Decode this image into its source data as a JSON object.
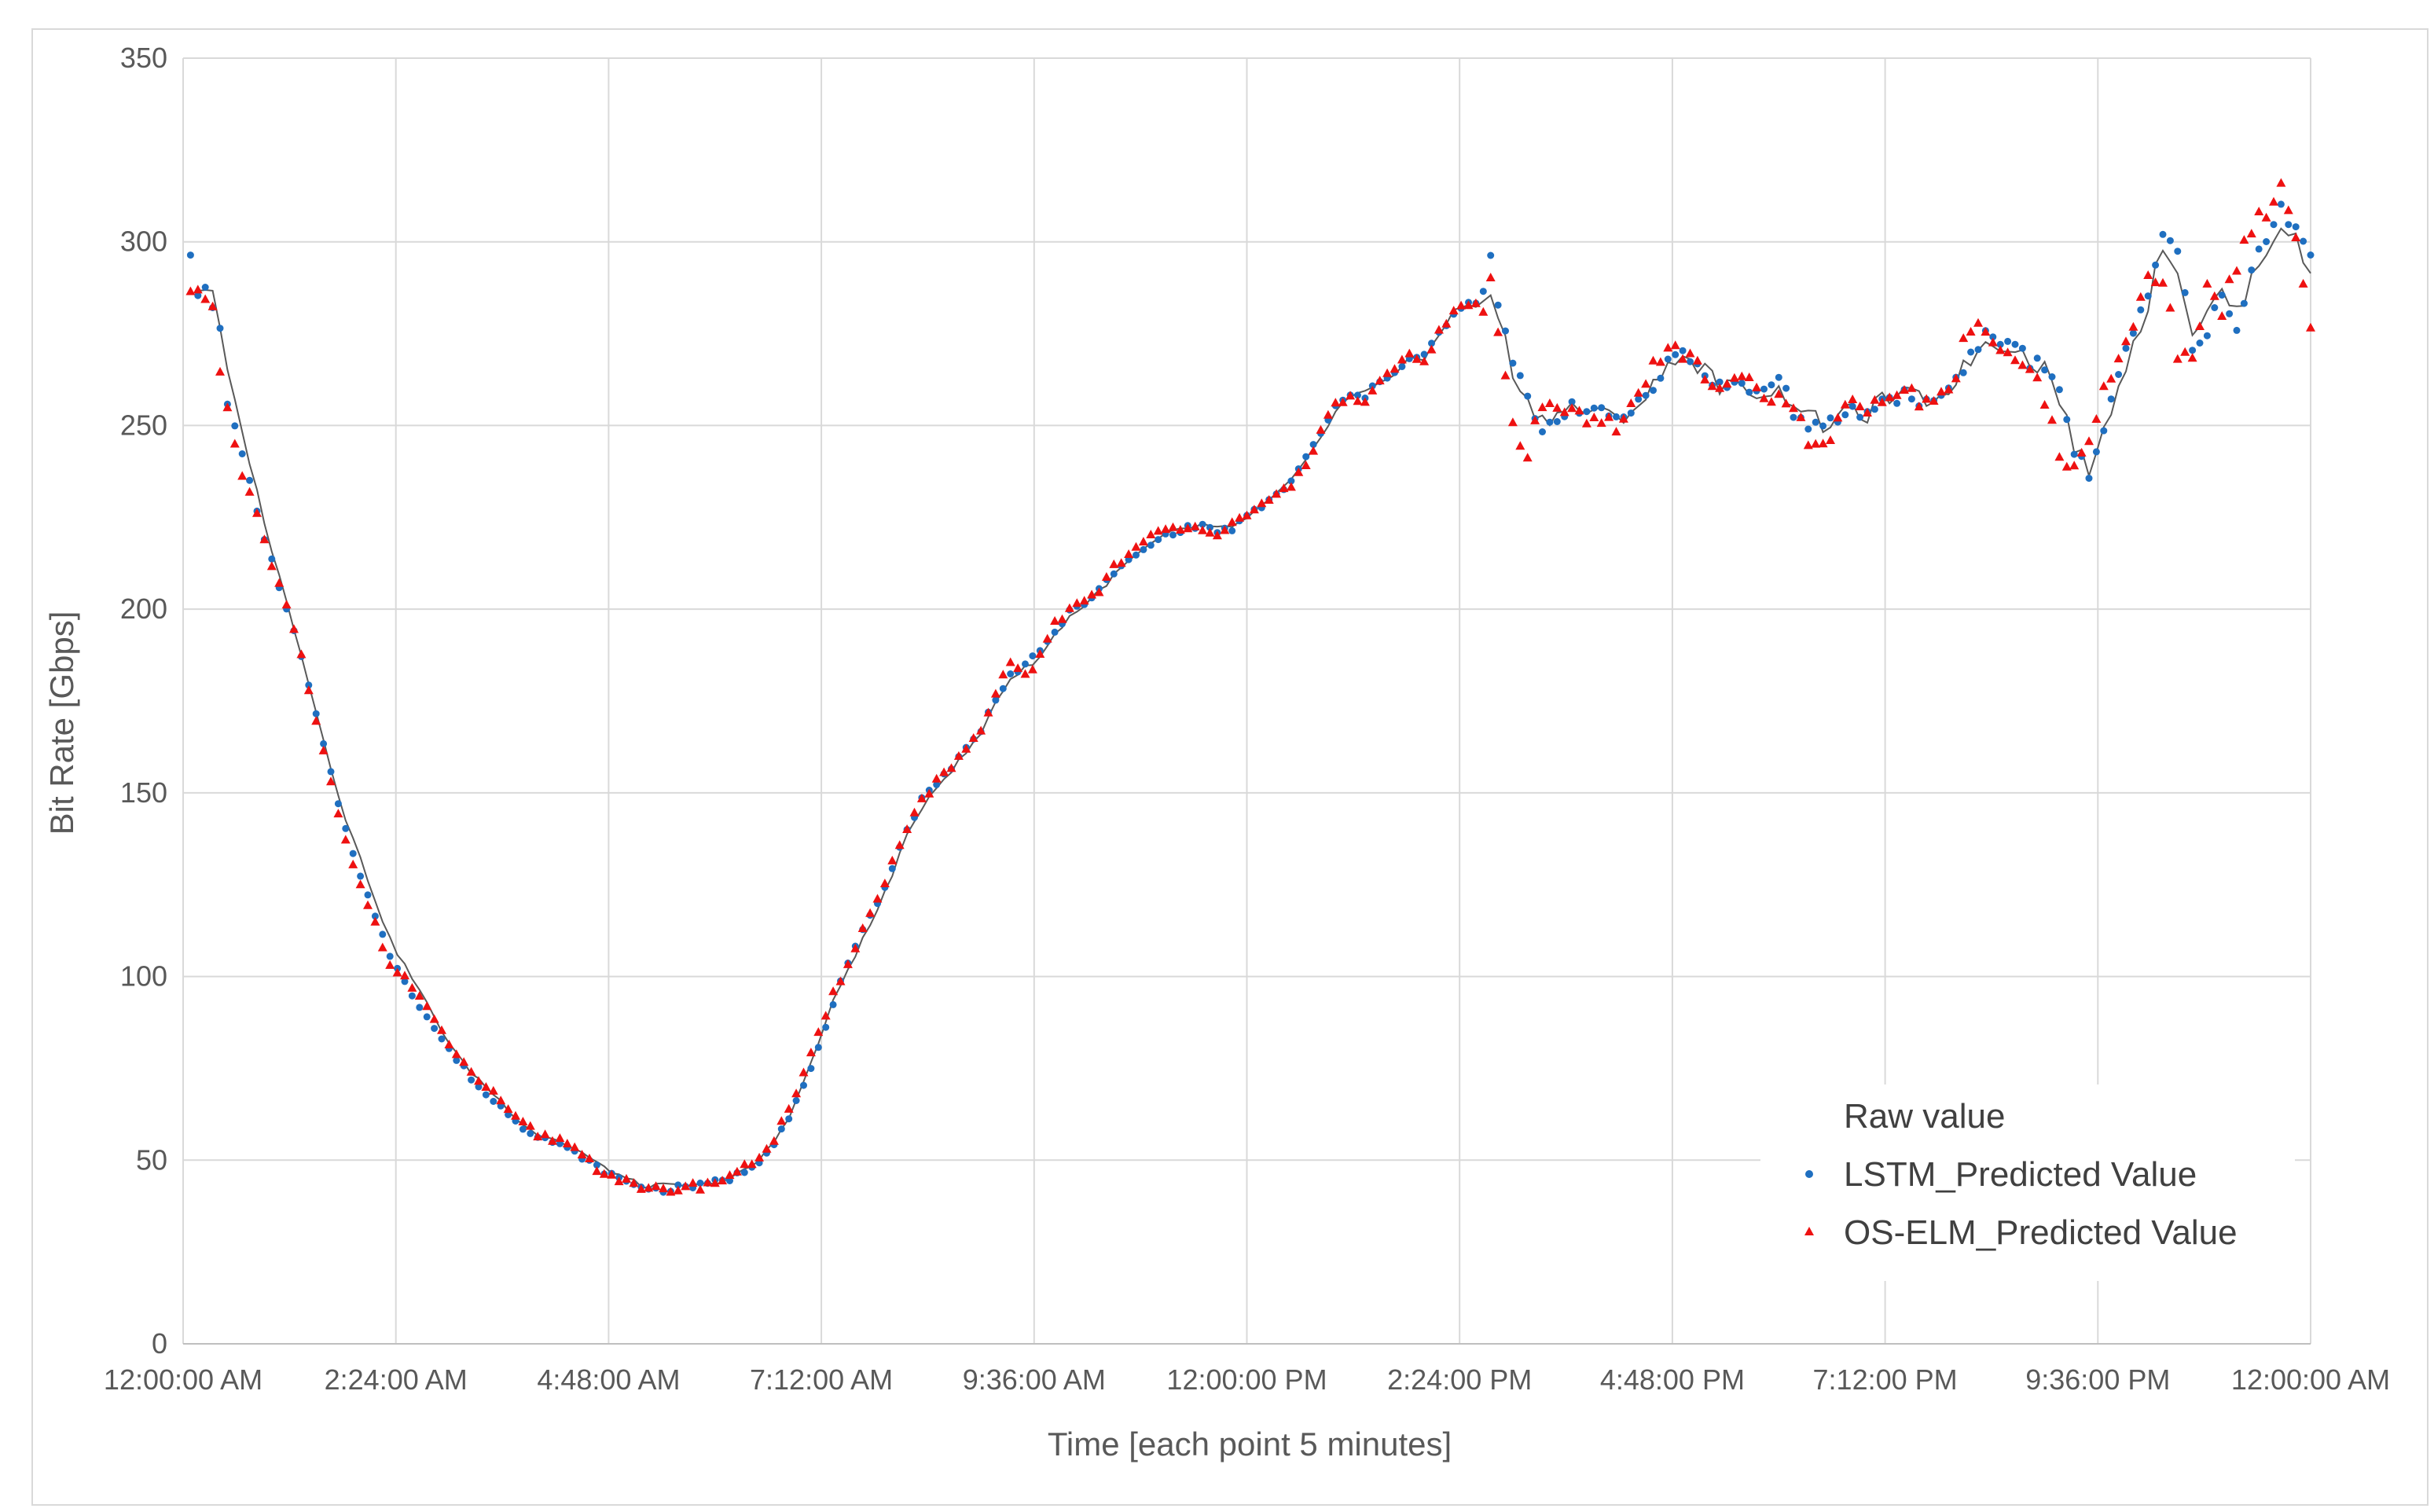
{
  "chart_data": {
    "type": "scatter",
    "title": "",
    "xlabel": "Time [each point 5 minutes]",
    "ylabel": "Bit Rate [Gbps]",
    "xlim": [
      0,
      288
    ],
    "ylim": [
      0,
      350
    ],
    "grid": true,
    "legend_position": "bottom-right",
    "x_ticks": [
      {
        "pos": 0,
        "label": "12:00:00 AM"
      },
      {
        "pos": 28.8,
        "label": "2:24:00 AM"
      },
      {
        "pos": 57.6,
        "label": "4:48:00 AM"
      },
      {
        "pos": 86.4,
        "label": "7:12:00 AM"
      },
      {
        "pos": 115.2,
        "label": "9:36:00 AM"
      },
      {
        "pos": 144,
        "label": "12:00:00 PM"
      },
      {
        "pos": 172.8,
        "label": "2:24:00 PM"
      },
      {
        "pos": 201.6,
        "label": "4:48:00 PM"
      },
      {
        "pos": 230.4,
        "label": "7:12:00 PM"
      },
      {
        "pos": 259.2,
        "label": "9:36:00 PM"
      },
      {
        "pos": 288,
        "label": "12:00:00 AM"
      }
    ],
    "y_ticks": [
      "0",
      "50",
      "100",
      "150",
      "200",
      "250",
      "300",
      "350"
    ],
    "series": [
      {
        "name": "Raw value",
        "style": "line",
        "color": "#595959"
      },
      {
        "name": "LSTM_Predicted Value",
        "style": "dot",
        "color": "#1f6fc0"
      },
      {
        "name": "OS-ELM_Predicted Value",
        "style": "triangle",
        "color": "#ee1111"
      }
    ],
    "raw_anchors": [
      [
        2,
        287
      ],
      [
        4,
        287
      ],
      [
        6,
        265
      ],
      [
        8,
        248
      ],
      [
        10,
        232
      ],
      [
        12,
        216
      ],
      [
        14,
        202
      ],
      [
        16,
        188
      ],
      [
        18,
        172
      ],
      [
        20,
        157
      ],
      [
        22,
        143
      ],
      [
        24,
        132
      ],
      [
        26,
        121
      ],
      [
        28,
        110
      ],
      [
        30,
        103
      ],
      [
        32,
        96
      ],
      [
        34,
        89
      ],
      [
        36,
        82
      ],
      [
        38,
        76
      ],
      [
        40,
        72
      ],
      [
        42,
        68
      ],
      [
        44,
        64
      ],
      [
        46,
        60
      ],
      [
        48,
        57
      ],
      [
        50,
        56
      ],
      [
        52,
        54
      ],
      [
        54,
        52
      ],
      [
        56,
        49
      ],
      [
        58,
        47
      ],
      [
        60,
        45
      ],
      [
        62,
        43
      ],
      [
        64,
        43
      ],
      [
        66,
        43
      ],
      [
        68,
        43
      ],
      [
        70,
        43
      ],
      [
        72,
        44
      ],
      [
        74,
        45
      ],
      [
        76,
        47
      ],
      [
        78,
        50
      ],
      [
        80,
        55
      ],
      [
        82,
        62
      ],
      [
        84,
        71
      ],
      [
        86,
        82
      ],
      [
        88,
        93
      ],
      [
        90,
        102
      ],
      [
        92,
        110
      ],
      [
        94,
        118
      ],
      [
        96,
        128
      ],
      [
        98,
        138
      ],
      [
        100,
        146
      ],
      [
        102,
        152
      ],
      [
        104,
        156
      ],
      [
        106,
        161
      ],
      [
        108,
        166
      ],
      [
        110,
        175
      ],
      [
        112,
        181
      ],
      [
        114,
        184
      ],
      [
        116,
        187
      ],
      [
        118,
        193
      ],
      [
        120,
        198
      ],
      [
        122,
        201
      ],
      [
        124,
        205
      ],
      [
        126,
        209
      ],
      [
        128,
        213
      ],
      [
        130,
        216
      ],
      [
        132,
        219
      ],
      [
        134,
        221
      ],
      [
        136,
        222
      ],
      [
        138,
        223
      ],
      [
        140,
        222
      ],
      [
        142,
        222
      ],
      [
        144,
        225
      ],
      [
        146,
        228
      ],
      [
        148,
        231
      ],
      [
        150,
        235
      ],
      [
        152,
        240
      ],
      [
        154,
        247
      ],
      [
        156,
        254
      ],
      [
        158,
        258
      ],
      [
        160,
        259
      ],
      [
        162,
        262
      ],
      [
        164,
        264
      ],
      [
        166,
        268
      ],
      [
        168,
        268
      ],
      [
        170,
        275
      ],
      [
        172,
        281
      ],
      [
        174,
        283
      ],
      [
        176,
        282
      ],
      [
        177,
        286
      ],
      [
        178,
        280
      ],
      [
        180,
        265
      ],
      [
        182,
        256
      ],
      [
        184,
        252
      ],
      [
        186,
        253
      ],
      [
        188,
        255
      ],
      [
        190,
        254
      ],
      [
        192,
        253
      ],
      [
        194,
        252
      ],
      [
        196,
        254
      ],
      [
        198,
        258
      ],
      [
        200,
        263
      ],
      [
        202,
        269
      ],
      [
        204,
        268
      ],
      [
        206,
        265
      ],
      [
        208,
        261
      ],
      [
        210,
        260
      ],
      [
        212,
        260
      ],
      [
        214,
        259
      ],
      [
        216,
        259
      ],
      [
        218,
        257
      ],
      [
        220,
        253
      ],
      [
        222,
        250
      ],
      [
        224,
        252
      ],
      [
        226,
        254
      ],
      [
        228,
        253
      ],
      [
        230,
        257
      ],
      [
        232,
        258
      ],
      [
        234,
        258
      ],
      [
        236,
        257
      ],
      [
        238,
        258
      ],
      [
        240,
        263
      ],
      [
        242,
        268
      ],
      [
        244,
        273
      ],
      [
        246,
        272
      ],
      [
        248,
        272
      ],
      [
        250,
        267
      ],
      [
        252,
        266
      ],
      [
        254,
        258
      ],
      [
        256,
        244
      ],
      [
        258,
        238
      ],
      [
        260,
        248
      ],
      [
        262,
        262
      ],
      [
        264,
        272
      ],
      [
        266,
        283
      ],
      [
        268,
        300
      ],
      [
        270,
        292
      ],
      [
        272,
        276
      ],
      [
        274,
        280
      ],
      [
        276,
        287
      ],
      [
        278,
        280
      ],
      [
        280,
        290
      ],
      [
        282,
        298
      ],
      [
        284,
        305
      ],
      [
        286,
        300
      ],
      [
        288,
        291
      ]
    ],
    "lstm_anchors": [
      [
        1,
        297
      ],
      [
        2,
        286
      ],
      [
        3,
        287
      ],
      [
        4,
        282
      ],
      [
        5,
        276
      ],
      [
        6,
        256
      ],
      [
        8,
        243
      ],
      [
        10,
        226
      ],
      [
        12,
        213
      ],
      [
        14,
        200
      ],
      [
        16,
        187
      ],
      [
        18,
        171
      ],
      [
        20,
        155
      ],
      [
        22,
        140
      ],
      [
        24,
        128
      ],
      [
        26,
        116
      ],
      [
        28,
        106
      ],
      [
        30,
        99
      ],
      [
        32,
        92
      ],
      [
        34,
        86
      ],
      [
        36,
        80
      ],
      [
        38,
        75
      ],
      [
        40,
        70
      ],
      [
        42,
        66
      ],
      [
        44,
        63
      ],
      [
        46,
        59
      ],
      [
        48,
        57
      ],
      [
        50,
        55
      ],
      [
        52,
        53
      ],
      [
        54,
        51
      ],
      [
        56,
        48
      ],
      [
        58,
        46
      ],
      [
        60,
        44
      ],
      [
        62,
        43
      ],
      [
        64,
        42
      ],
      [
        66,
        42
      ],
      [
        68,
        43
      ],
      [
        70,
        43
      ],
      [
        72,
        44
      ],
      [
        74,
        45
      ],
      [
        76,
        47
      ],
      [
        78,
        50
      ],
      [
        80,
        55
      ],
      [
        82,
        62
      ],
      [
        84,
        70
      ],
      [
        86,
        80
      ],
      [
        88,
        93
      ],
      [
        90,
        103
      ],
      [
        92,
        112
      ],
      [
        94,
        120
      ],
      [
        96,
        130
      ],
      [
        98,
        140
      ],
      [
        100,
        148
      ],
      [
        102,
        153
      ],
      [
        104,
        157
      ],
      [
        106,
        162
      ],
      [
        108,
        167
      ],
      [
        110,
        176
      ],
      [
        112,
        182
      ],
      [
        114,
        185
      ],
      [
        116,
        188
      ],
      [
        118,
        194
      ],
      [
        120,
        199
      ],
      [
        122,
        202
      ],
      [
        124,
        205
      ],
      [
        126,
        210
      ],
      [
        128,
        213
      ],
      [
        130,
        216
      ],
      [
        132,
        219
      ],
      [
        134,
        221
      ],
      [
        136,
        222
      ],
      [
        138,
        223
      ],
      [
        140,
        221
      ],
      [
        142,
        222
      ],
      [
        144,
        225
      ],
      [
        146,
        228
      ],
      [
        148,
        231
      ],
      [
        150,
        235
      ],
      [
        152,
        241
      ],
      [
        154,
        248
      ],
      [
        156,
        255
      ],
      [
        158,
        258
      ],
      [
        160,
        258
      ],
      [
        162,
        262
      ],
      [
        164,
        265
      ],
      [
        166,
        268
      ],
      [
        168,
        269
      ],
      [
        170,
        275
      ],
      [
        172,
        280
      ],
      [
        174,
        283
      ],
      [
        176,
        285
      ],
      [
        177,
        295
      ],
      [
        178,
        283
      ],
      [
        180,
        267
      ],
      [
        182,
        257
      ],
      [
        184,
        249
      ],
      [
        186,
        252
      ],
      [
        188,
        256
      ],
      [
        190,
        254
      ],
      [
        192,
        253
      ],
      [
        194,
        252
      ],
      [
        196,
        254
      ],
      [
        198,
        259
      ],
      [
        200,
        264
      ],
      [
        202,
        270
      ],
      [
        204,
        268
      ],
      [
        206,
        264
      ],
      [
        208,
        261
      ],
      [
        210,
        261
      ],
      [
        212,
        260
      ],
      [
        214,
        259
      ],
      [
        216,
        264
      ],
      [
        218,
        254
      ],
      [
        220,
        249
      ],
      [
        222,
        249
      ],
      [
        224,
        252
      ],
      [
        226,
        254
      ],
      [
        228,
        253
      ],
      [
        230,
        257
      ],
      [
        232,
        258
      ],
      [
        234,
        258
      ],
      [
        236,
        256
      ],
      [
        238,
        258
      ],
      [
        240,
        263
      ],
      [
        242,
        269
      ],
      [
        244,
        275
      ],
      [
        246,
        272
      ],
      [
        248,
        273
      ],
      [
        250,
        267
      ],
      [
        252,
        266
      ],
      [
        254,
        258
      ],
      [
        256,
        244
      ],
      [
        258,
        236
      ],
      [
        260,
        250
      ],
      [
        262,
        265
      ],
      [
        264,
        274
      ],
      [
        266,
        285
      ],
      [
        268,
        302
      ],
      [
        270,
        297
      ],
      [
        272,
        272
      ],
      [
        274,
        276
      ],
      [
        276,
        285
      ],
      [
        278,
        275
      ],
      [
        280,
        292
      ],
      [
        282,
        302
      ],
      [
        284,
        310
      ],
      [
        286,
        303
      ],
      [
        288,
        298
      ]
    ],
    "oselm_anchors": [
      [
        1,
        286
      ],
      [
        2,
        288
      ],
      [
        3,
        285
      ],
      [
        4,
        282
      ],
      [
        5,
        264
      ],
      [
        6,
        254
      ],
      [
        8,
        236
      ],
      [
        10,
        226
      ],
      [
        12,
        212
      ],
      [
        14,
        201
      ],
      [
        16,
        187
      ],
      [
        18,
        169
      ],
      [
        20,
        153
      ],
      [
        22,
        137
      ],
      [
        24,
        126
      ],
      [
        26,
        114
      ],
      [
        28,
        103
      ],
      [
        30,
        100
      ],
      [
        32,
        94
      ],
      [
        34,
        88
      ],
      [
        36,
        82
      ],
      [
        38,
        76
      ],
      [
        40,
        72
      ],
      [
        42,
        68
      ],
      [
        44,
        63
      ],
      [
        46,
        60
      ],
      [
        48,
        57
      ],
      [
        50,
        56
      ],
      [
        52,
        55
      ],
      [
        54,
        52
      ],
      [
        56,
        48
      ],
      [
        58,
        46
      ],
      [
        60,
        44
      ],
      [
        62,
        42
      ],
      [
        64,
        42
      ],
      [
        66,
        42
      ],
      [
        68,
        43
      ],
      [
        70,
        43
      ],
      [
        72,
        44
      ],
      [
        74,
        46
      ],
      [
        76,
        48
      ],
      [
        78,
        51
      ],
      [
        80,
        56
      ],
      [
        82,
        64
      ],
      [
        84,
        73
      ],
      [
        86,
        84
      ],
      [
        88,
        95
      ],
      [
        90,
        104
      ],
      [
        92,
        113
      ],
      [
        94,
        121
      ],
      [
        96,
        131
      ],
      [
        98,
        141
      ],
      [
        100,
        148
      ],
      [
        102,
        153
      ],
      [
        104,
        157
      ],
      [
        106,
        162
      ],
      [
        108,
        166
      ],
      [
        110,
        177
      ],
      [
        112,
        186
      ],
      [
        114,
        182
      ],
      [
        116,
        187
      ],
      [
        118,
        196
      ],
      [
        120,
        200
      ],
      [
        122,
        203
      ],
      [
        124,
        205
      ],
      [
        126,
        212
      ],
      [
        128,
        215
      ],
      [
        130,
        218
      ],
      [
        132,
        221
      ],
      [
        134,
        222
      ],
      [
        136,
        223
      ],
      [
        138,
        222
      ],
      [
        140,
        221
      ],
      [
        142,
        223
      ],
      [
        144,
        225
      ],
      [
        146,
        228
      ],
      [
        148,
        231
      ],
      [
        150,
        234
      ],
      [
        152,
        240
      ],
      [
        154,
        248
      ],
      [
        156,
        256
      ],
      [
        158,
        258
      ],
      [
        160,
        256
      ],
      [
        162,
        262
      ],
      [
        164,
        265
      ],
      [
        166,
        269
      ],
      [
        168,
        267
      ],
      [
        170,
        276
      ],
      [
        172,
        281
      ],
      [
        174,
        283
      ],
      [
        176,
        282
      ],
      [
        177,
        289
      ],
      [
        178,
        276
      ],
      [
        180,
        250
      ],
      [
        182,
        242
      ],
      [
        184,
        256
      ],
      [
        186,
        254
      ],
      [
        188,
        257
      ],
      [
        190,
        253
      ],
      [
        192,
        252
      ],
      [
        194,
        250
      ],
      [
        196,
        254
      ],
      [
        198,
        262
      ],
      [
        200,
        269
      ],
      [
        202,
        272
      ],
      [
        204,
        268
      ],
      [
        206,
        264
      ],
      [
        208,
        258
      ],
      [
        210,
        262
      ],
      [
        212,
        263
      ],
      [
        214,
        258
      ],
      [
        216,
        257
      ],
      [
        218,
        254
      ],
      [
        220,
        246
      ],
      [
        222,
        243
      ],
      [
        224,
        251
      ],
      [
        226,
        256
      ],
      [
        228,
        252
      ],
      [
        230,
        258
      ],
      [
        232,
        259
      ],
      [
        234,
        258
      ],
      [
        236,
        256
      ],
      [
        238,
        258
      ],
      [
        240,
        265
      ],
      [
        242,
        278
      ],
      [
        244,
        275
      ],
      [
        246,
        270
      ],
      [
        248,
        270
      ],
      [
        250,
        265
      ],
      [
        252,
        258
      ],
      [
        254,
        243
      ],
      [
        256,
        237
      ],
      [
        258,
        244
      ],
      [
        260,
        260
      ],
      [
        262,
        268
      ],
      [
        264,
        276
      ],
      [
        266,
        293
      ],
      [
        268,
        290
      ],
      [
        270,
        270
      ],
      [
        272,
        266
      ],
      [
        274,
        290
      ],
      [
        276,
        282
      ],
      [
        278,
        294
      ],
      [
        280,
        303
      ],
      [
        282,
        309
      ],
      [
        284,
        316
      ],
      [
        286,
        299
      ],
      [
        288,
        277
      ]
    ]
  }
}
